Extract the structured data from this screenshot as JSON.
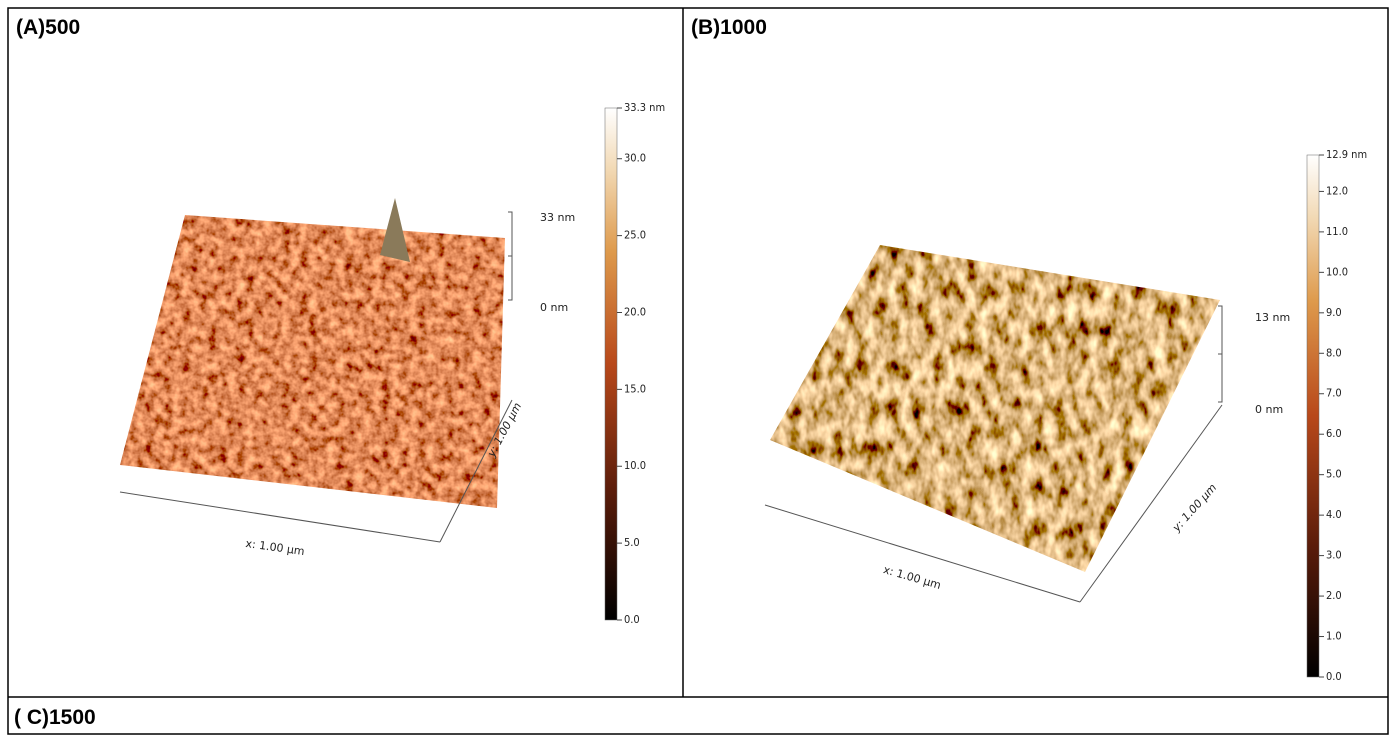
{
  "cells": [
    {
      "label": "(A)500",
      "height_axis": {
        "top": "33 nm",
        "bottom": "0 nm"
      },
      "x_label": "x: 1.00 µm",
      "y_label": "y: 1.00 µm",
      "colorbar": {
        "ticks": [
          {
            "value": 33.3,
            "label": "33.3 nm"
          },
          {
            "value": 30,
            "label": "30.0"
          },
          {
            "value": 25,
            "label": "25.0"
          },
          {
            "value": 20,
            "label": "20.0"
          },
          {
            "value": 15,
            "label": "15.0"
          },
          {
            "value": 10,
            "label": "10.0"
          },
          {
            "value": 5,
            "label": "5.0"
          },
          {
            "value": 0,
            "label": "0.0"
          }
        ]
      }
    },
    {
      "label": "(B)1000",
      "height_axis": {
        "top": "13 nm",
        "bottom": "0 nm"
      },
      "x_label": "x: 1.00 µm",
      "y_label": "y: 1.00 µm",
      "colorbar": {
        "ticks": [
          {
            "value": 12.9,
            "label": "12.9 nm"
          },
          {
            "value": 12,
            "label": "12.0"
          },
          {
            "value": 11,
            "label": "11.0"
          },
          {
            "value": 10,
            "label": "10.0"
          },
          {
            "value": 9,
            "label": "9.0"
          },
          {
            "value": 8,
            "label": "8.0"
          },
          {
            "value": 7,
            "label": "7.0"
          },
          {
            "value": 6,
            "label": "6.0"
          },
          {
            "value": 5,
            "label": "5.0"
          },
          {
            "value": 4,
            "label": "4.0"
          },
          {
            "value": 3,
            "label": "3.0"
          },
          {
            "value": 2,
            "label": "2.0"
          },
          {
            "value": 1,
            "label": "1.0"
          },
          {
            "value": 0,
            "label": "0.0"
          }
        ]
      }
    }
  ],
  "row2": {
    "label": "( C)1500"
  }
}
